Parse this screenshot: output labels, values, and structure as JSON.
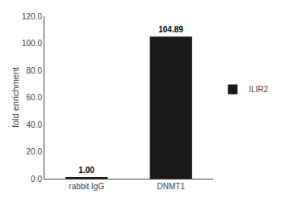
{
  "chart_data": {
    "type": "bar",
    "categories": [
      "rabbit IgG",
      "DNMT1"
    ],
    "series": [
      {
        "name": "ILIR2",
        "color": "#1a1a1a",
        "values": [
          1.0,
          104.89
        ],
        "value_labels": [
          "1.00",
          "104.89"
        ]
      }
    ],
    "ylabel": "fold enrichment",
    "ylim": [
      0,
      120.0
    ],
    "yticks": [
      {
        "value": 0.0,
        "label": "0.0"
      },
      {
        "value": 20.0,
        "label": "20.0"
      },
      {
        "value": 40.0,
        "label": "40.0"
      },
      {
        "value": 60.0,
        "label": "60.0"
      },
      {
        "value": 80.0,
        "label": "80.0"
      },
      {
        "value": 100.0,
        "label": "100.0"
      },
      {
        "value": 120.0,
        "label": "120.0"
      }
    ],
    "data_labels": true,
    "legend": "right",
    "grid": false
  }
}
